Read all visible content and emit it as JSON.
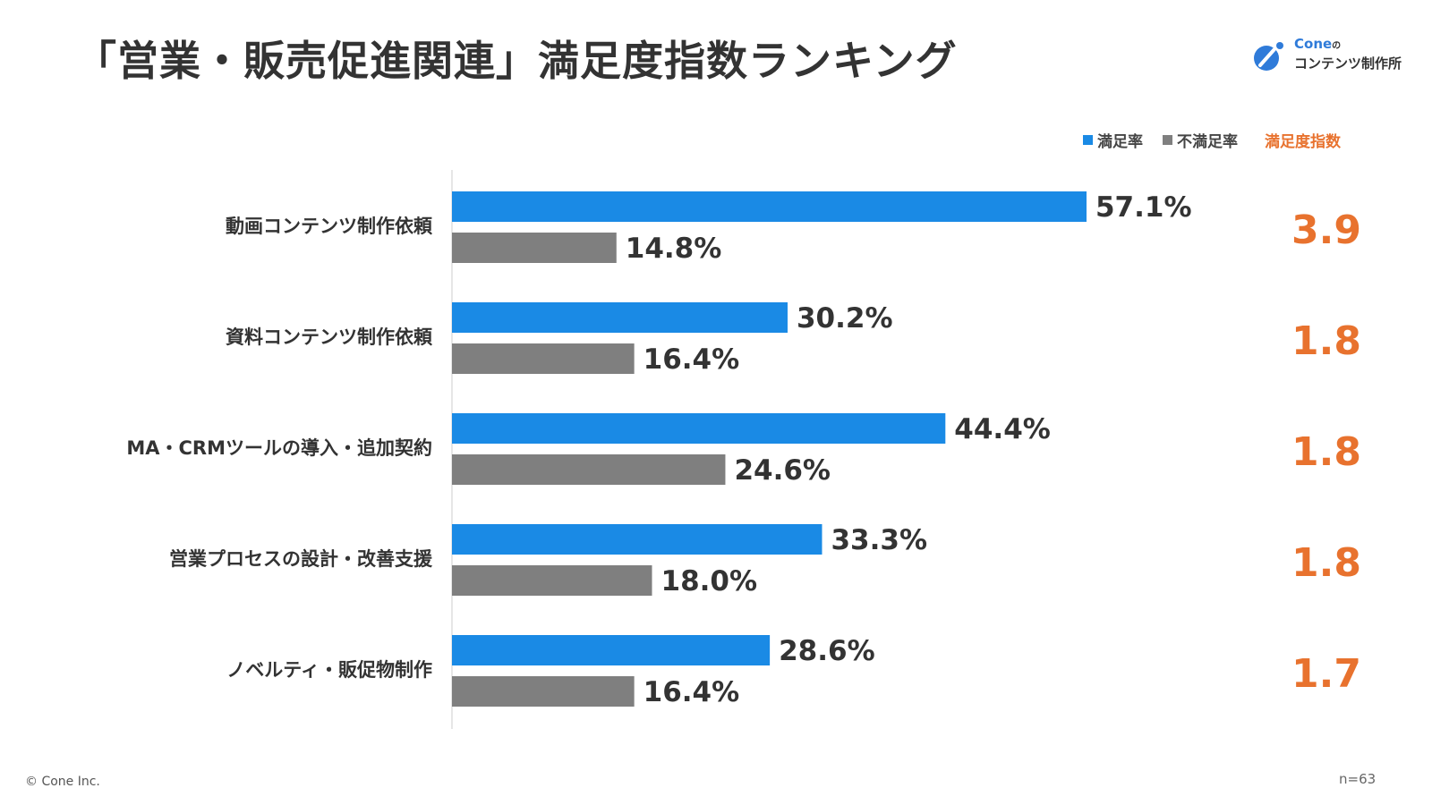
{
  "title": "「営業・販売促進関連」満足度指数ランキング",
  "logo": {
    "brand": "Cone",
    "particle": "の",
    "subtitle": "コンテンツ制作所"
  },
  "colors": {
    "satisfied": "#1a8ae5",
    "dissatisfied": "#7f7f7f",
    "index": "#e8722e",
    "text": "#333333",
    "axis": "#cccccc"
  },
  "legend": {
    "satisfied_label": "満足率",
    "dissatisfied_label": "不満足率",
    "index_label": "満足度指数"
  },
  "chart_data": {
    "type": "bar",
    "orientation": "horizontal",
    "categories": [
      "動画コンテンツ制作依頼",
      "資料コンテンツ制作依頼",
      "MA・CRMツールの導入・追加契約",
      "営業プロセスの設計・改善支援",
      "ノベルティ・販促物制作"
    ],
    "series": [
      {
        "name": "満足率",
        "values": [
          57.1,
          30.2,
          44.4,
          33.3,
          28.6
        ],
        "labels": [
          "57.1%",
          "30.2%",
          "44.4%",
          "33.3%",
          "28.6%"
        ]
      },
      {
        "name": "不満足率",
        "values": [
          14.8,
          16.4,
          24.6,
          18.0,
          16.4
        ],
        "labels": [
          "14.8%",
          "16.4%",
          "24.6%",
          "18.0%",
          "16.4%"
        ]
      }
    ],
    "satisfaction_index": [
      "3.9",
      "1.8",
      "1.8",
      "1.8",
      "1.7"
    ],
    "xlim": [
      0,
      60
    ],
    "title": "「営業・販売促進関連」満足度指数ランキング",
    "legend_position": "top-right"
  },
  "footer": {
    "copyright": "© Cone Inc.",
    "sample": "n=63"
  }
}
